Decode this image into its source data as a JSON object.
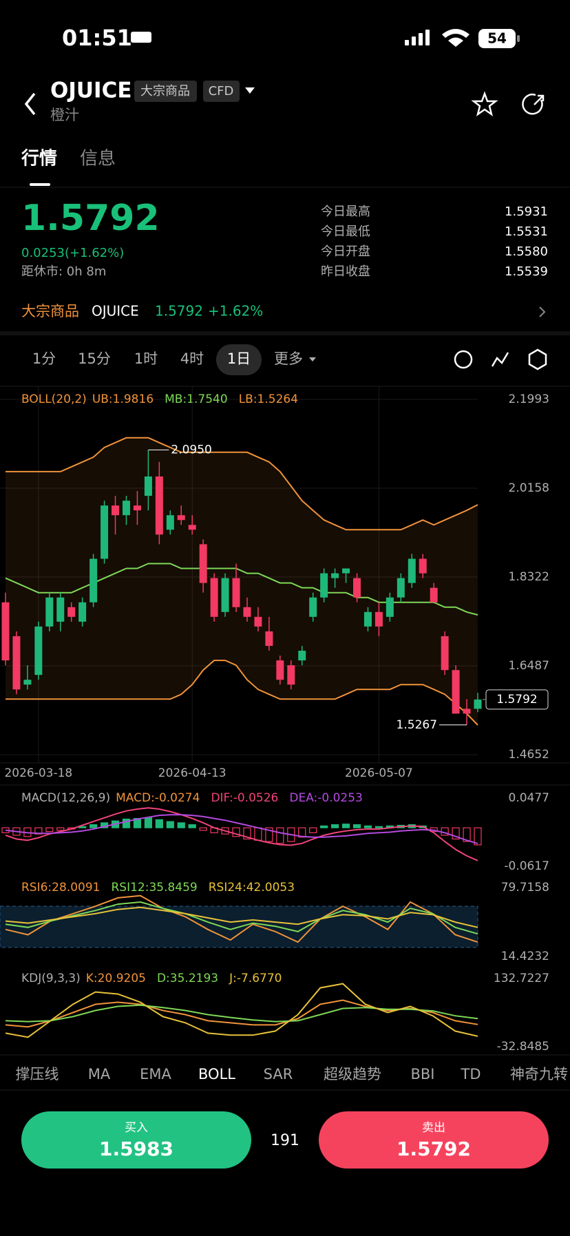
{
  "status_bar": {
    "time": "01:51",
    "battery": "54"
  },
  "header": {
    "symbol": "OJUICE",
    "tags": [
      "大宗商品",
      "CFD"
    ],
    "name": "橙汁"
  },
  "tabs": [
    "行情",
    "信息"
  ],
  "quote": {
    "price": "1.5792",
    "change": "0.0253(+1.62%)",
    "close_timer": "距休市: 0h 8m",
    "stats": [
      {
        "label": "今日最高",
        "value": "1.5931"
      },
      {
        "label": "今日最低",
        "value": "1.5531"
      },
      {
        "label": "今日开盘",
        "value": "1.5580"
      },
      {
        "label": "昨日收盘",
        "value": "1.5539"
      }
    ]
  },
  "ticker_strip": {
    "category": "大宗商品",
    "symbol": "OJUICE",
    "price": "1.5792",
    "change": "+1.62%"
  },
  "periods": [
    "1分",
    "15分",
    "1时",
    "4时",
    "1日",
    "更多"
  ],
  "active_period": 4,
  "chart_data": [
    {
      "type": "candlestick",
      "title": "BOLL(20,2)",
      "categories": [
        null,
        null,
        null,
        "2026-03-18",
        null,
        null,
        null,
        null,
        null,
        null,
        null,
        null,
        null,
        null,
        null,
        null,
        null,
        "2026-04-13",
        null,
        null,
        null,
        null,
        null,
        null,
        null,
        null,
        null,
        null,
        null,
        null,
        null,
        null,
        null,
        null,
        "2026-05-07",
        null,
        null,
        null,
        null,
        null,
        null,
        null,
        null,
        null
      ],
      "open": [
        1.78,
        1.71,
        1.61,
        1.63,
        1.73,
        1.74,
        1.77,
        1.74,
        1.78,
        1.87,
        1.98,
        1.96,
        1.98,
        2.0,
        2.04,
        1.93,
        1.96,
        1.94,
        1.9,
        1.83,
        1.76,
        1.83,
        1.77,
        1.75,
        1.72,
        1.66,
        1.65,
        1.66,
        1.75,
        1.79,
        1.83,
        1.84,
        1.83,
        1.73,
        1.76,
        1.75,
        1.79,
        1.82,
        1.87,
        1.81,
        1.71,
        1.64,
        1.56,
        1.56
      ],
      "high": [
        1.8,
        1.72,
        1.65,
        1.74,
        1.8,
        1.8,
        1.78,
        1.79,
        1.88,
        1.99,
        2.0,
        2.0,
        2.01,
        2.095,
        2.07,
        1.97,
        1.98,
        1.96,
        1.91,
        1.84,
        1.84,
        1.86,
        1.79,
        1.77,
        1.75,
        1.67,
        1.66,
        1.69,
        1.8,
        1.85,
        1.85,
        1.85,
        1.84,
        1.77,
        1.78,
        1.8,
        1.84,
        1.88,
        1.88,
        1.82,
        1.72,
        1.65,
        1.58,
        1.5931
      ],
      "low": [
        1.65,
        1.59,
        1.6,
        1.62,
        1.72,
        1.72,
        1.74,
        1.73,
        1.77,
        1.86,
        1.92,
        1.94,
        1.94,
        1.97,
        1.9,
        1.92,
        1.94,
        1.92,
        1.8,
        1.74,
        1.75,
        1.76,
        1.74,
        1.72,
        1.68,
        1.61,
        1.6,
        1.65,
        1.74,
        1.78,
        1.81,
        1.82,
        1.78,
        1.72,
        1.71,
        1.74,
        1.78,
        1.81,
        1.83,
        1.78,
        1.63,
        1.55,
        1.5267,
        1.5531
      ],
      "close": [
        1.66,
        1.6,
        1.62,
        1.73,
        1.79,
        1.79,
        1.75,
        1.78,
        1.87,
        1.98,
        1.96,
        1.99,
        1.97,
        2.04,
        1.92,
        1.96,
        1.95,
        1.93,
        1.82,
        1.75,
        1.83,
        1.77,
        1.75,
        1.73,
        1.69,
        1.62,
        1.61,
        1.68,
        1.79,
        1.84,
        1.84,
        1.85,
        1.79,
        1.76,
        1.73,
        1.79,
        1.83,
        1.87,
        1.84,
        1.78,
        1.64,
        1.55,
        1.55,
        1.5792
      ],
      "up_color": "#1fb87a",
      "down_color": "#f23a63",
      "series": [
        {
          "name": "UB:1.9816",
          "color": "#f0933a",
          "values": [
            2.05,
            2.05,
            2.05,
            2.05,
            2.05,
            2.05,
            2.06,
            2.07,
            2.08,
            2.1,
            2.11,
            2.12,
            2.12,
            2.12,
            2.11,
            2.1,
            2.09,
            2.09,
            2.09,
            2.09,
            2.09,
            2.09,
            2.09,
            2.08,
            2.07,
            2.05,
            2.02,
            1.99,
            1.97,
            1.95,
            1.94,
            1.93,
            1.93,
            1.93,
            1.93,
            1.93,
            1.93,
            1.94,
            1.95,
            1.94,
            1.95,
            1.96,
            1.97,
            1.9816
          ]
        },
        {
          "name": "MB:1.7540",
          "color": "#7ed957",
          "values": [
            1.83,
            1.82,
            1.81,
            1.8,
            1.8,
            1.8,
            1.8,
            1.81,
            1.82,
            1.83,
            1.84,
            1.85,
            1.85,
            1.86,
            1.86,
            1.86,
            1.85,
            1.85,
            1.85,
            1.85,
            1.85,
            1.85,
            1.84,
            1.84,
            1.83,
            1.82,
            1.82,
            1.81,
            1.81,
            1.8,
            1.8,
            1.8,
            1.79,
            1.79,
            1.78,
            1.78,
            1.78,
            1.78,
            1.78,
            1.78,
            1.77,
            1.77,
            1.76,
            1.754
          ]
        },
        {
          "name": "LB:1.5264",
          "color": "#f0933a",
          "values": [
            1.58,
            1.58,
            1.58,
            1.58,
            1.58,
            1.58,
            1.58,
            1.58,
            1.58,
            1.58,
            1.58,
            1.58,
            1.58,
            1.58,
            1.58,
            1.58,
            1.59,
            1.61,
            1.64,
            1.66,
            1.66,
            1.65,
            1.62,
            1.6,
            1.59,
            1.58,
            1.58,
            1.58,
            1.58,
            1.58,
            1.58,
            1.59,
            1.6,
            1.6,
            1.6,
            1.6,
            1.61,
            1.61,
            1.61,
            1.6,
            1.59,
            1.57,
            1.55,
            1.5264
          ]
        }
      ],
      "band_fill": "#f0933a",
      "annotations": {
        "max": {
          "value": 2.095,
          "label": "2.0950"
        },
        "min": 1.5267
      },
      "ylim": [
        1.4652,
        2.1993
      ],
      "yticks": [
        1.4652,
        1.6487,
        1.8322,
        2.0158,
        2.1993
      ],
      "grid": true
    },
    {
      "type": "macd",
      "title": "MACD(12,26,9)",
      "up_color": "#1fb87a",
      "down_color": "#f23a63",
      "series": [
        {
          "name": "MACD:-0.0274",
          "color": "#f0933a",
          "kind": "bar",
          "values": [
            -0.008,
            -0.012,
            -0.014,
            -0.01,
            -0.006,
            -0.004,
            -0.002,
            0.002,
            0.005,
            0.008,
            0.011,
            0.014,
            0.015,
            0.016,
            0.013,
            0.01,
            0.008,
            0.005,
            -0.004,
            -0.008,
            -0.01,
            -0.014,
            -0.018,
            -0.02,
            -0.022,
            -0.025,
            -0.022,
            -0.015,
            -0.008,
            0.003,
            0.005,
            0.006,
            0.005,
            0.003,
            0.002,
            0.003,
            0.004,
            0.005,
            0.003,
            -0.006,
            -0.012,
            -0.018,
            -0.022,
            -0.0274
          ]
        },
        {
          "name": "DIF:-0.0526",
          "color": "#f0447a",
          "kind": "line",
          "values": [
            -0.012,
            -0.018,
            -0.02,
            -0.016,
            -0.01,
            -0.006,
            -0.002,
            0.004,
            0.01,
            0.016,
            0.022,
            0.027,
            0.03,
            0.032,
            0.03,
            0.026,
            0.021,
            0.015,
            0.008,
            0.0,
            -0.005,
            -0.01,
            -0.015,
            -0.02,
            -0.024,
            -0.027,
            -0.028,
            -0.025,
            -0.018,
            -0.012,
            -0.008,
            -0.005,
            -0.003,
            -0.002,
            -0.002,
            0.0,
            0.002,
            0.003,
            0.002,
            -0.008,
            -0.022,
            -0.035,
            -0.045,
            -0.0526
          ]
        },
        {
          "name": "DEA:-0.0253",
          "color": "#b54ae0",
          "kind": "line",
          "values": [
            -0.004,
            -0.006,
            -0.008,
            -0.009,
            -0.009,
            -0.008,
            -0.007,
            -0.005,
            -0.002,
            0.002,
            0.006,
            0.01,
            0.014,
            0.017,
            0.02,
            0.021,
            0.021,
            0.02,
            0.018,
            0.015,
            0.012,
            0.008,
            0.004,
            0.0,
            -0.004,
            -0.008,
            -0.011,
            -0.014,
            -0.015,
            -0.015,
            -0.014,
            -0.013,
            -0.011,
            -0.009,
            -0.008,
            -0.007,
            -0.005,
            -0.004,
            -0.003,
            -0.004,
            -0.008,
            -0.014,
            -0.02,
            -0.0253
          ]
        }
      ],
      "ylim": [
        -0.0617,
        0.0477
      ],
      "yticks": [
        -0.0617,
        0.0477
      ]
    },
    {
      "type": "line",
      "series": [
        {
          "name": "RSI6:28.0091",
          "color": "#f0933a",
          "values": [
            40,
            35,
            48,
            55,
            62,
            70,
            72,
            60,
            52,
            40,
            30,
            45,
            38,
            28,
            50,
            62,
            52,
            40,
            66,
            55,
            35,
            28.0091
          ]
        },
        {
          "name": "RSI12:35.8459",
          "color": "#7ed957",
          "values": [
            45,
            42,
            48,
            53,
            58,
            64,
            66,
            60,
            55,
            47,
            40,
            46,
            43,
            38,
            50,
            58,
            54,
            47,
            60,
            55,
            42,
            35.8459
          ]
        },
        {
          "name": "RSI24:42.0053",
          "color": "#e8c23a",
          "values": [
            48,
            46,
            49,
            52,
            55,
            59,
            61,
            58,
            55,
            51,
            47,
            49,
            47,
            45,
            50,
            54,
            53,
            50,
            56,
            54,
            47,
            42.0053
          ]
        }
      ],
      "ylim": [
        14.4232,
        79.7158
      ],
      "yticks": [
        14.4232,
        79.7158
      ]
    },
    {
      "type": "line",
      "title": "KDJ(9,3,3)",
      "series": [
        {
          "name": "K:20.9205",
          "color": "#f0933a",
          "values": [
            20,
            15,
            30,
            50,
            70,
            75,
            70,
            55,
            45,
            30,
            25,
            20,
            20,
            35,
            70,
            80,
            65,
            55,
            60,
            50,
            30,
            20.9205
          ]
        },
        {
          "name": "D:35.2193",
          "color": "#7ed957",
          "values": [
            30,
            28,
            30,
            40,
            55,
            65,
            68,
            62,
            55,
            45,
            38,
            32,
            28,
            30,
            45,
            60,
            62,
            58,
            58,
            54,
            42,
            35.2193
          ]
        },
        {
          "name": "J:-7.6770",
          "color": "#e8c23a",
          "values": [
            0,
            -10,
            30,
            70,
            100,
            95,
            75,
            40,
            25,
            0,
            -5,
            -5,
            5,
            45,
            110,
            120,
            70,
            50,
            65,
            42,
            5,
            -7.677
          ]
        }
      ],
      "ylim": [
        -32.8485,
        132.7227
      ],
      "yticks": [
        -32.8485,
        132.7227
      ]
    }
  ],
  "indicator_tabs": [
    "撑压线",
    "MA",
    "EMA",
    "BOLL",
    "SAR",
    "超级趋势",
    "BBI",
    "TD",
    "神奇九转"
  ],
  "active_indicator": 3,
  "trade": {
    "buy": {
      "label": "买入",
      "price": "1.5983"
    },
    "spread": "191",
    "sell": {
      "label": "卖出",
      "price": "1.5792"
    }
  }
}
